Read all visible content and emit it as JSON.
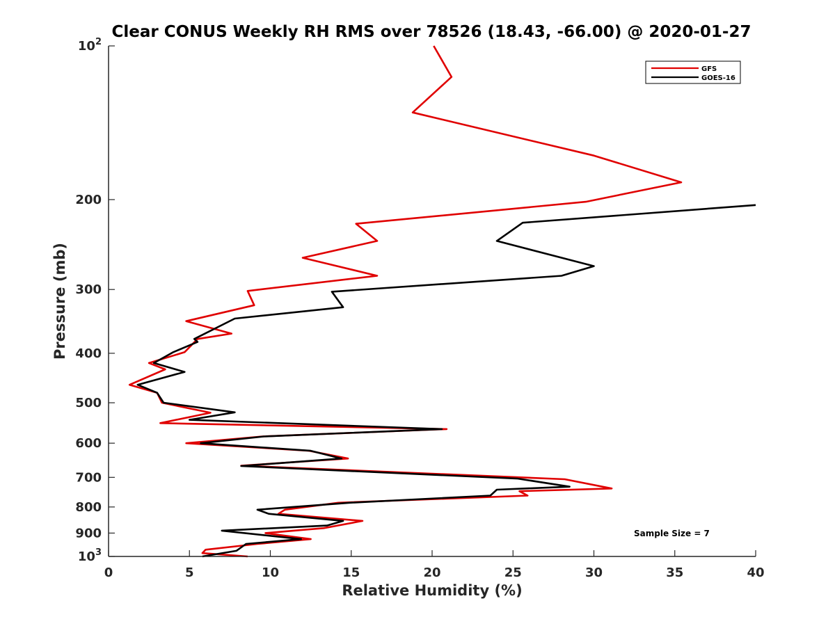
{
  "chart_data": {
    "type": "line",
    "title": "Clear CONUS Weekly RH RMS over 78526 (18.43, -66.00) @ 2020-01-27",
    "xlabel": "Relative Humidity (%)",
    "ylabel": "Pressure (mb)",
    "xlim": [
      0,
      40
    ],
    "ylim": [
      100,
      1000
    ],
    "y_scale": "log",
    "y_reversed": true,
    "x_ticks": [
      "0",
      "5",
      "10",
      "15",
      "20",
      "25",
      "30",
      "35",
      "40"
    ],
    "y_ticks": [
      {
        "value": 100,
        "base": "10",
        "exp": "2"
      },
      {
        "value": 200,
        "label": "200"
      },
      {
        "value": 300,
        "label": "300"
      },
      {
        "value": 400,
        "label": "400"
      },
      {
        "value": 500,
        "label": "500"
      },
      {
        "value": 600,
        "label": "600"
      },
      {
        "value": 700,
        "label": "700"
      },
      {
        "value": 800,
        "label": "800"
      },
      {
        "value": 900,
        "label": "900"
      },
      {
        "value": 1000,
        "base": "10",
        "exp": "3"
      }
    ],
    "grid": false,
    "legend_position": "top-right",
    "annotation": "Sample Size = 7",
    "series": [
      {
        "name": "GFS",
        "color": "#e00000",
        "points": [
          [
            20.1,
            100
          ],
          [
            21.2,
            115
          ],
          [
            18.8,
            135
          ],
          [
            30.0,
            164
          ],
          [
            35.4,
            185
          ],
          [
            29.5,
            202
          ],
          [
            15.3,
            223
          ],
          [
            16.6,
            241
          ],
          [
            12.0,
            260
          ],
          [
            16.6,
            282
          ],
          [
            8.6,
            302
          ],
          [
            9.0,
            322
          ],
          [
            4.8,
            346
          ],
          [
            7.6,
            366
          ],
          [
            5.5,
            375
          ],
          [
            4.7,
            398
          ],
          [
            2.5,
            418
          ],
          [
            3.5,
            430
          ],
          [
            1.3,
            461
          ],
          [
            3.0,
            478
          ],
          [
            3.3,
            500
          ],
          [
            6.3,
            523
          ],
          [
            3.2,
            548
          ],
          [
            20.9,
            563
          ],
          [
            9.5,
            582
          ],
          [
            4.8,
            600
          ],
          [
            12.4,
            621
          ],
          [
            14.8,
            643
          ],
          [
            8.2,
            664
          ],
          [
            28.2,
            706
          ],
          [
            31.1,
            736
          ],
          [
            25.4,
            745
          ],
          [
            25.9,
            760
          ],
          [
            14.2,
            785
          ],
          [
            10.9,
            810
          ],
          [
            10.5,
            825
          ],
          [
            15.7,
            852
          ],
          [
            13.3,
            880
          ],
          [
            9.7,
            900
          ],
          [
            12.5,
            925
          ],
          [
            9.2,
            945
          ],
          [
            6.0,
            970
          ],
          [
            5.8,
            985
          ],
          [
            8.6,
            1000
          ]
        ]
      },
      {
        "name": "GOES-16",
        "color": "#000000",
        "points": [
          [
            40.0,
            205
          ],
          [
            25.6,
            222
          ],
          [
            24.0,
            241
          ],
          [
            30.0,
            270
          ],
          [
            28.0,
            282
          ],
          [
            13.8,
            303
          ],
          [
            14.5,
            325
          ],
          [
            7.8,
            342
          ],
          [
            5.3,
            375
          ],
          [
            5.5,
            380
          ],
          [
            4.0,
            398
          ],
          [
            2.8,
            418
          ],
          [
            4.7,
            435
          ],
          [
            1.8,
            461
          ],
          [
            3.0,
            478
          ],
          [
            3.4,
            500
          ],
          [
            7.8,
            522
          ],
          [
            5.0,
            540
          ],
          [
            20.6,
            563
          ],
          [
            9.6,
            582
          ],
          [
            5.7,
            600
          ],
          [
            12.5,
            621
          ],
          [
            14.4,
            643
          ],
          [
            8.2,
            665
          ],
          [
            25.3,
            704
          ],
          [
            28.5,
            730
          ],
          [
            24.0,
            740
          ],
          [
            23.6,
            760
          ],
          [
            14.9,
            785
          ],
          [
            9.2,
            810
          ],
          [
            9.9,
            825
          ],
          [
            14.5,
            852
          ],
          [
            13.5,
            870
          ],
          [
            7.0,
            890
          ],
          [
            11.9,
            925
          ],
          [
            8.5,
            945
          ],
          [
            8.2,
            960
          ],
          [
            7.9,
            975
          ],
          [
            5.8,
            1000
          ]
        ]
      }
    ]
  }
}
